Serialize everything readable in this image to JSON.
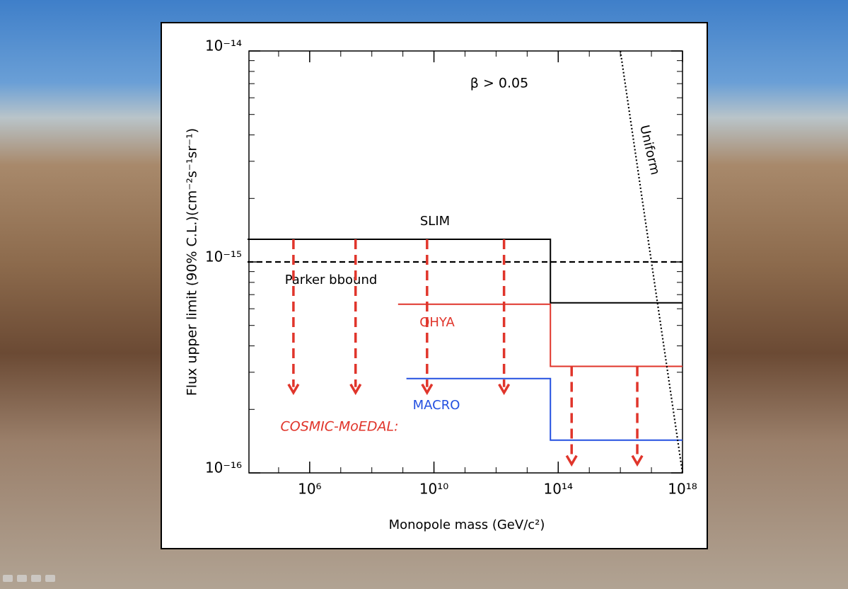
{
  "chart_data": {
    "type": "line",
    "xlabel": "Monopole mass (GeV/c²)",
    "ylabel": "Flux upper limit (90% C.L.)(cm⁻²s⁻¹sr⁻¹)",
    "xscale": "log",
    "yscale": "log",
    "xlim": [
      10000.0,
      1e+18
    ],
    "ylim": [
      1e-16,
      1e-14
    ],
    "xticks": [
      {
        "value": 1000000.0,
        "label": "10⁶"
      },
      {
        "value": 10000000000.0,
        "label": "10¹⁰"
      },
      {
        "value": 100000000000000.0,
        "label": "10¹⁴"
      },
      {
        "value": 1e+18,
        "label": "10¹⁸"
      }
    ],
    "yticks": [
      {
        "value": 1e-16,
        "label": "10⁻¹⁶"
      },
      {
        "value": 1e-15,
        "label": "10⁻¹⁵"
      },
      {
        "value": 1e-14,
        "label": "10⁻¹⁴"
      }
    ],
    "annotations": [
      "β > 0.05",
      "COSMIC-MoEDAL:"
    ],
    "series": [
      {
        "name": "SLIM",
        "color": "#000000",
        "line_style": "solid",
        "x": [
          10000.0,
          56000000000000.0,
          56000000000000.0,
          1e+18
        ],
        "values": [
          1.28e-15,
          1.28e-15,
          6.4e-16,
          6.4e-16
        ]
      },
      {
        "name": "Parker bbound",
        "color": "#000000",
        "line_style": "dashed",
        "x": [
          10000.0,
          1e+18
        ],
        "values": [
          1e-15,
          1e-15
        ]
      },
      {
        "name": "OHYA",
        "color": "#e0352b",
        "line_style": "solid",
        "x": [
          700000000.0,
          56000000000000.0,
          56000000000000.0,
          1e+18
        ],
        "values": [
          6.3e-16,
          6.3e-16,
          3.2e-16,
          3.2e-16
        ]
      },
      {
        "name": "MACRO",
        "color": "#2450e0",
        "line_style": "solid",
        "x": [
          1300000000.0,
          56000000000000.0,
          56000000000000.0,
          1e+18
        ],
        "values": [
          2.8e-16,
          2.8e-16,
          1.43e-16,
          1.43e-16
        ]
      },
      {
        "name": "Uniform",
        "color": "#000000",
        "line_style": "dotted",
        "x": [
          1e+16,
          1e+18
        ],
        "values": [
          1e-14,
          1e-16
        ]
      }
    ],
    "arrows": {
      "color": "#e0352b",
      "x": [
        300000.0,
        30000000.0,
        6000000000.0,
        1800000000000.0,
        270000000000000.0,
        3.5e+16
      ],
      "y_start": [
        1.28e-15,
        1.28e-15,
        1.28e-15,
        1.28e-15,
        3.2e-16,
        3.2e-16
      ],
      "y_end": [
        2.4e-16,
        2.4e-16,
        2.4e-16,
        2.4e-16,
        1.1e-16,
        1.1e-16
      ]
    }
  }
}
